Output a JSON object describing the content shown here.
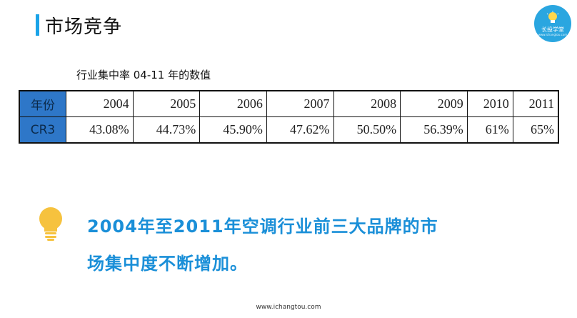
{
  "slide": {
    "title": "市场竞争",
    "logo_text": "长投学堂",
    "logo_sub": "www.ichangtou.com"
  },
  "table": {
    "caption": "行业集中率 04-11 年的数值",
    "row_header_year": "年份",
    "row_header_cr3": "CR3",
    "years": [
      "2004",
      "2005",
      "2006",
      "2007",
      "2008",
      "2009",
      "2010",
      "2011"
    ],
    "cr3": [
      "43.08%",
      "44.73%",
      "45.90%",
      "47.62%",
      "50.50%",
      "56.39%",
      "61%",
      "65%"
    ]
  },
  "conclusion": {
    "line1": "2004年至2011年空调行业前三大品牌的市",
    "line2": "场集中度不断增加。"
  },
  "footer": {
    "url": "www.ichangtou.com"
  },
  "colors": {
    "accent": "#1aa3e8",
    "header_cell": "#2e77c8",
    "conclusion_text": "#1a8fd8",
    "bulb": "#f6c23e"
  }
}
